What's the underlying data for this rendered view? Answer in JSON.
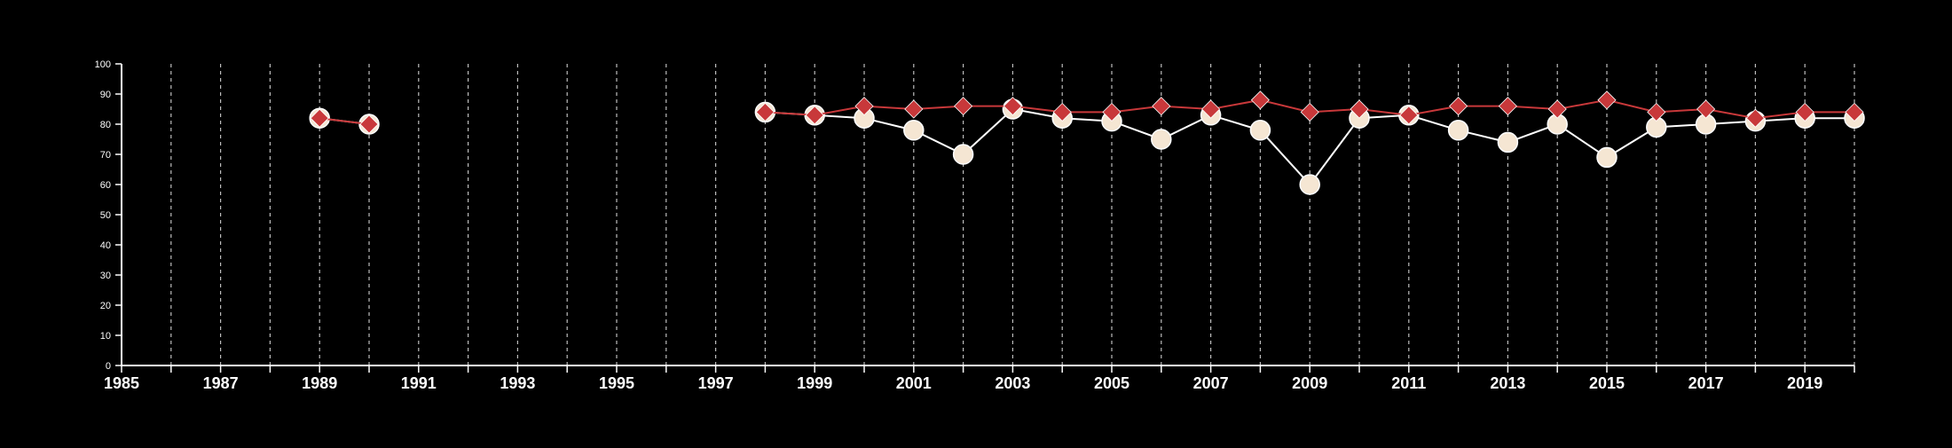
{
  "chart_data": {
    "type": "line",
    "title": "",
    "xlabel": "",
    "ylabel": "",
    "xlim": [
      1985,
      2020
    ],
    "ylim": [
      0,
      100
    ],
    "yticks": [
      0,
      10,
      20,
      30,
      40,
      50,
      60,
      70,
      80,
      90,
      100
    ],
    "xtick_labels": [
      1985,
      1987,
      1989,
      1991,
      1993,
      1995,
      1997,
      1999,
      2001,
      2003,
      2005,
      2007,
      2009,
      2011,
      2013,
      2015,
      2017,
      2019
    ],
    "vertical_grid": "dashed, every year",
    "legend": "none",
    "series": [
      {
        "marker": "circle",
        "color": "#f5e6d3",
        "line_color": "#ffffff",
        "points": [
          {
            "x": 1989,
            "y": 82
          },
          {
            "x": 1990,
            "y": 80
          },
          {
            "x": 1998,
            "y": 84
          },
          {
            "x": 1999,
            "y": 83
          },
          {
            "x": 2000,
            "y": 82
          },
          {
            "x": 2001,
            "y": 78
          },
          {
            "x": 2002,
            "y": 70
          },
          {
            "x": 2003,
            "y": 85
          },
          {
            "x": 2004,
            "y": 82
          },
          {
            "x": 2005,
            "y": 81
          },
          {
            "x": 2006,
            "y": 75
          },
          {
            "x": 2007,
            "y": 83
          },
          {
            "x": 2008,
            "y": 78
          },
          {
            "x": 2009,
            "y": 60
          },
          {
            "x": 2010,
            "y": 82
          },
          {
            "x": 2011,
            "y": 83
          },
          {
            "x": 2012,
            "y": 78
          },
          {
            "x": 2013,
            "y": 74
          },
          {
            "x": 2014,
            "y": 80
          },
          {
            "x": 2015,
            "y": 69
          },
          {
            "x": 2016,
            "y": 79
          },
          {
            "x": 2017,
            "y": 80
          },
          {
            "x": 2018,
            "y": 81
          },
          {
            "x": 2019,
            "y": 82
          },
          {
            "x": 2020,
            "y": 82
          }
        ]
      },
      {
        "marker": "diamond",
        "color": "#c8383a",
        "line_color": "#c8383a",
        "points": [
          {
            "x": 1989,
            "y": 82
          },
          {
            "x": 1990,
            "y": 80
          },
          {
            "x": 1998,
            "y": 84
          },
          {
            "x": 1999,
            "y": 83
          },
          {
            "x": 2000,
            "y": 86
          },
          {
            "x": 2001,
            "y": 85
          },
          {
            "x": 2002,
            "y": 86
          },
          {
            "x": 2003,
            "y": 86
          },
          {
            "x": 2004,
            "y": 84
          },
          {
            "x": 2005,
            "y": 84
          },
          {
            "x": 2006,
            "y": 86
          },
          {
            "x": 2007,
            "y": 85
          },
          {
            "x": 2008,
            "y": 88
          },
          {
            "x": 2009,
            "y": 84
          },
          {
            "x": 2010,
            "y": 85
          },
          {
            "x": 2011,
            "y": 83
          },
          {
            "x": 2012,
            "y": 86
          },
          {
            "x": 2013,
            "y": 86
          },
          {
            "x": 2014,
            "y": 85
          },
          {
            "x": 2015,
            "y": 88
          },
          {
            "x": 2016,
            "y": 84
          },
          {
            "x": 2017,
            "y": 85
          },
          {
            "x": 2018,
            "y": 82
          },
          {
            "x": 2019,
            "y": 84
          },
          {
            "x": 2020,
            "y": 84
          }
        ]
      }
    ]
  }
}
